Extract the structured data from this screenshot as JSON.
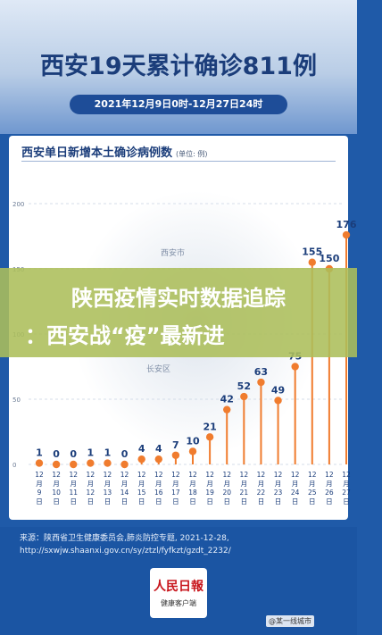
{
  "title": "西安19天累计确诊811例",
  "date_range": "2021年12月9日0时-12月27日24时",
  "overlay": {
    "line1": "陕西疫情实时数据追踪",
    "line2": "：西安战“疫”最新进"
  },
  "source": {
    "line1": "来源：陕西省卫生健康委员会,肺炎防控专题, 2021-12-28,",
    "line2": "http://sxwjw.shaanxi.gov.cn/sy/ztzl/fyfkzt/gzdt_2232/"
  },
  "logo": {
    "main": "人民日報",
    "sub": "健康客户端"
  },
  "watermark": "@某一线城市",
  "colors": {
    "accent": "#f07c2e",
    "title": "#1b3d7a",
    "band": "#1b55a3"
  },
  "chart_data": {
    "type": "bar",
    "title": "西安单日新增本土确诊病例数",
    "unit": "(单位: 例)",
    "categories": [
      "12月9日",
      "12月10日",
      "12月11日",
      "12月12日",
      "12月13日",
      "12月14日",
      "12月15日",
      "12月16日",
      "12月17日",
      "12月18日",
      "12月19日",
      "12月20日",
      "12月21日",
      "12月22日",
      "12月23日",
      "12月24日",
      "12月25日",
      "12月26日",
      "12月27日"
    ],
    "values": [
      1,
      0,
      0,
      1,
      1,
      0,
      4,
      4,
      7,
      10,
      21,
      42,
      52,
      63,
      49,
      75,
      155,
      150,
      176
    ],
    "yticks": [
      0,
      50,
      100,
      150,
      200
    ],
    "ylim": [
      0,
      200
    ],
    "map_labels": [
      "西安市",
      "长安区"
    ],
    "grid": true
  }
}
